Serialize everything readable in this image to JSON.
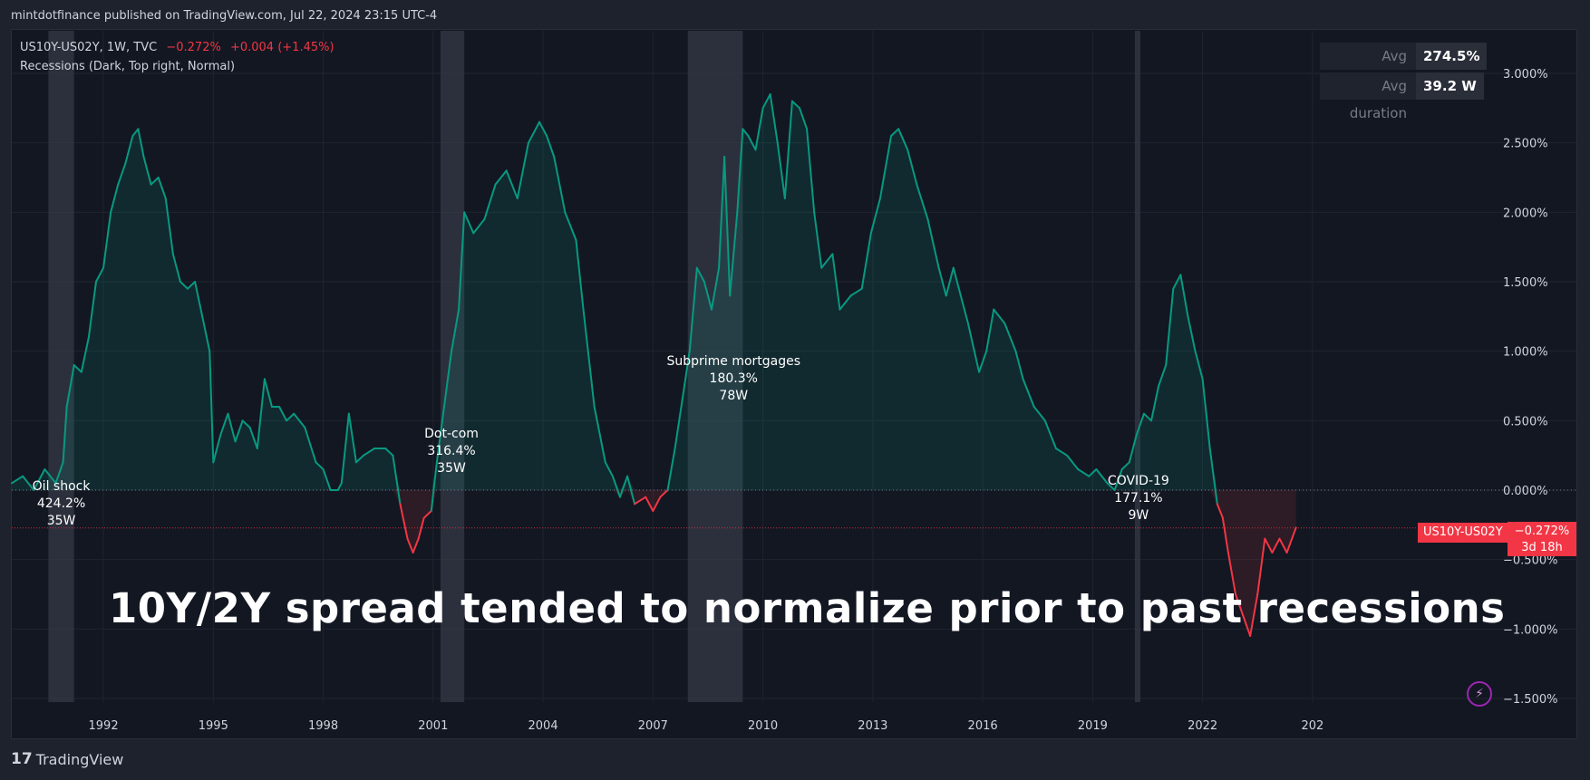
{
  "header": {
    "publisher": "mintdotfinance published on TradingView.com, Jul 22, 2024 23:15 UTC-4"
  },
  "legend": {
    "symbol": "US10Y-US02Y, 1W, TVC",
    "change_pct": "−0.272%",
    "change_abs": "+0.004 (+1.45%)",
    "indicator": "Recessions (Dark, Top right, Normal)"
  },
  "stats": {
    "avg_correction_label": "Avg correction",
    "avg_correction_value": "274.5%",
    "avg_duration_label": "Avg duration",
    "avg_duration_value": "39.2 W"
  },
  "headline": "10Y/2Y spread tended to normalize prior to past recessions",
  "price_tag": {
    "symbol": "US10Y-US02Y",
    "value": "−0.272%",
    "countdown": "3d 18h"
  },
  "brand": {
    "logo": "17",
    "name": "TradingView"
  },
  "colors": {
    "up": "#089981",
    "down": "#f23645",
    "background": "#131722",
    "recession_band": "#363a45"
  },
  "chart_data": {
    "type": "line",
    "yticks": [
      "3.000%",
      "2.500%",
      "2.000%",
      "1.500%",
      "1.000%",
      "0.500%",
      "0.000%",
      "−0.500%",
      "−1.000%",
      "−1.500%"
    ],
    "xticks": [
      "1992",
      "1995",
      "1998",
      "2001",
      "2004",
      "2007",
      "2010",
      "2013",
      "2016",
      "2019",
      "2022",
      "202"
    ],
    "xlim": [
      1989.5,
      2025.3
    ],
    "ylim": [
      -1.6,
      3.3
    ],
    "recessions": [
      {
        "start": 1990.5,
        "end": 1991.2,
        "name": "Oil shock",
        "pct": "424.2%",
        "dur": "35W",
        "label_x": 1990.85,
        "label_y": -0.1
      },
      {
        "start": 2001.2,
        "end": 2001.85,
        "name": "Dot-com",
        "pct": "316.4%",
        "dur": "35W",
        "label_x": 2001.5,
        "label_y": 0.28
      },
      {
        "start": 2007.95,
        "end": 2009.45,
        "name": "Subprime mortgages",
        "pct": "180.3%",
        "dur": "78W",
        "label_x": 2009.2,
        "label_y": 0.8
      },
      {
        "start": 2020.15,
        "end": 2020.3,
        "name": "COVID-19",
        "pct": "177.1%",
        "dur": "9W",
        "label_x": 2020.25,
        "label_y": -0.06
      }
    ],
    "series": [
      {
        "values_xy": [
          [
            1989.5,
            0.05
          ],
          [
            1989.8,
            0.1
          ],
          [
            1990.1,
            0.0
          ],
          [
            1990.4,
            0.15
          ],
          [
            1990.7,
            0.05
          ],
          [
            1990.9,
            0.2
          ],
          [
            1991.0,
            0.6
          ],
          [
            1991.2,
            0.9
          ],
          [
            1991.4,
            0.85
          ],
          [
            1991.6,
            1.1
          ],
          [
            1991.8,
            1.5
          ],
          [
            1992.0,
            1.6
          ],
          [
            1992.2,
            2.0
          ],
          [
            1992.4,
            2.2
          ],
          [
            1992.6,
            2.35
          ],
          [
            1992.8,
            2.55
          ],
          [
            1992.95,
            2.6
          ],
          [
            1993.1,
            2.4
          ],
          [
            1993.3,
            2.2
          ],
          [
            1993.5,
            2.25
          ],
          [
            1993.7,
            2.1
          ],
          [
            1993.9,
            1.7
          ],
          [
            1994.1,
            1.5
          ],
          [
            1994.3,
            1.45
          ],
          [
            1994.5,
            1.5
          ],
          [
            1994.7,
            1.25
          ],
          [
            1994.9,
            1.0
          ],
          [
            1995.0,
            0.2
          ],
          [
            1995.2,
            0.4
          ],
          [
            1995.4,
            0.55
          ],
          [
            1995.6,
            0.35
          ],
          [
            1995.8,
            0.5
          ],
          [
            1996.0,
            0.45
          ],
          [
            1996.2,
            0.3
          ],
          [
            1996.4,
            0.8
          ],
          [
            1996.6,
            0.6
          ],
          [
            1996.8,
            0.6
          ],
          [
            1997.0,
            0.5
          ],
          [
            1997.2,
            0.55
          ],
          [
            1997.5,
            0.45
          ],
          [
            1997.8,
            0.2
          ],
          [
            1998.0,
            0.15
          ],
          [
            1998.2,
            0.0
          ],
          [
            1998.4,
            0.0
          ],
          [
            1998.5,
            0.05
          ],
          [
            1998.7,
            0.55
          ],
          [
            1998.9,
            0.2
          ],
          [
            1999.1,
            0.25
          ],
          [
            1999.4,
            0.3
          ],
          [
            1999.7,
            0.3
          ],
          [
            1999.9,
            0.25
          ],
          [
            2000.1,
            -0.1
          ],
          [
            2000.3,
            -0.35
          ],
          [
            2000.45,
            -0.45
          ],
          [
            2000.6,
            -0.35
          ],
          [
            2000.75,
            -0.2
          ],
          [
            2000.95,
            -0.15
          ],
          [
            2001.1,
            0.2
          ],
          [
            2001.3,
            0.6
          ],
          [
            2001.5,
            1.0
          ],
          [
            2001.7,
            1.3
          ],
          [
            2001.85,
            2.0
          ],
          [
            2002.1,
            1.85
          ],
          [
            2002.4,
            1.95
          ],
          [
            2002.7,
            2.2
          ],
          [
            2003.0,
            2.3
          ],
          [
            2003.3,
            2.1
          ],
          [
            2003.6,
            2.5
          ],
          [
            2003.9,
            2.65
          ],
          [
            2004.1,
            2.55
          ],
          [
            2004.3,
            2.4
          ],
          [
            2004.6,
            2.0
          ],
          [
            2004.9,
            1.8
          ],
          [
            2005.1,
            1.3
          ],
          [
            2005.4,
            0.6
          ],
          [
            2005.7,
            0.2
          ],
          [
            2005.9,
            0.1
          ],
          [
            2006.1,
            -0.05
          ],
          [
            2006.3,
            0.1
          ],
          [
            2006.5,
            -0.1
          ],
          [
            2006.8,
            -0.05
          ],
          [
            2007.0,
            -0.15
          ],
          [
            2007.2,
            -0.05
          ],
          [
            2007.4,
            0.0
          ],
          [
            2007.6,
            0.3
          ],
          [
            2007.8,
            0.65
          ],
          [
            2008.0,
            1.0
          ],
          [
            2008.2,
            1.6
          ],
          [
            2008.4,
            1.5
          ],
          [
            2008.6,
            1.3
          ],
          [
            2008.8,
            1.6
          ],
          [
            2008.95,
            2.4
          ],
          [
            2009.1,
            1.4
          ],
          [
            2009.3,
            2.0
          ],
          [
            2009.45,
            2.6
          ],
          [
            2009.6,
            2.55
          ],
          [
            2009.8,
            2.45
          ],
          [
            2010.0,
            2.75
          ],
          [
            2010.2,
            2.85
          ],
          [
            2010.4,
            2.5
          ],
          [
            2010.6,
            2.1
          ],
          [
            2010.8,
            2.8
          ],
          [
            2011.0,
            2.75
          ],
          [
            2011.2,
            2.6
          ],
          [
            2011.4,
            2.0
          ],
          [
            2011.6,
            1.6
          ],
          [
            2011.9,
            1.7
          ],
          [
            2012.1,
            1.3
          ],
          [
            2012.4,
            1.4
          ],
          [
            2012.7,
            1.45
          ],
          [
            2012.95,
            1.85
          ],
          [
            2013.2,
            2.1
          ],
          [
            2013.5,
            2.55
          ],
          [
            2013.7,
            2.6
          ],
          [
            2013.95,
            2.45
          ],
          [
            2014.2,
            2.2
          ],
          [
            2014.5,
            1.95
          ],
          [
            2014.8,
            1.6
          ],
          [
            2015.0,
            1.4
          ],
          [
            2015.2,
            1.6
          ],
          [
            2015.4,
            1.4
          ],
          [
            2015.6,
            1.2
          ],
          [
            2015.9,
            0.85
          ],
          [
            2016.1,
            1.0
          ],
          [
            2016.3,
            1.3
          ],
          [
            2016.6,
            1.2
          ],
          [
            2016.9,
            1.0
          ],
          [
            2017.1,
            0.8
          ],
          [
            2017.4,
            0.6
          ],
          [
            2017.7,
            0.5
          ],
          [
            2018.0,
            0.3
          ],
          [
            2018.3,
            0.25
          ],
          [
            2018.6,
            0.15
          ],
          [
            2018.9,
            0.1
          ],
          [
            2019.1,
            0.15
          ],
          [
            2019.4,
            0.05
          ],
          [
            2019.6,
            0.0
          ],
          [
            2019.8,
            0.15
          ],
          [
            2020.0,
            0.2
          ],
          [
            2020.2,
            0.4
          ],
          [
            2020.4,
            0.55
          ],
          [
            2020.6,
            0.5
          ],
          [
            2020.8,
            0.75
          ],
          [
            2021.0,
            0.9
          ],
          [
            2021.2,
            1.45
          ],
          [
            2021.4,
            1.55
          ],
          [
            2021.6,
            1.25
          ],
          [
            2021.8,
            1.0
          ],
          [
            2022.0,
            0.8
          ],
          [
            2022.2,
            0.3
          ],
          [
            2022.4,
            -0.1
          ],
          [
            2022.55,
            -0.2
          ],
          [
            2022.7,
            -0.45
          ],
          [
            2022.9,
            -0.75
          ],
          [
            2023.1,
            -0.9
          ],
          [
            2023.3,
            -1.05
          ],
          [
            2023.5,
            -0.75
          ],
          [
            2023.7,
            -0.35
          ],
          [
            2023.9,
            -0.45
          ],
          [
            2024.1,
            -0.35
          ],
          [
            2024.3,
            -0.45
          ],
          [
            2024.55,
            -0.27
          ]
        ]
      }
    ]
  }
}
